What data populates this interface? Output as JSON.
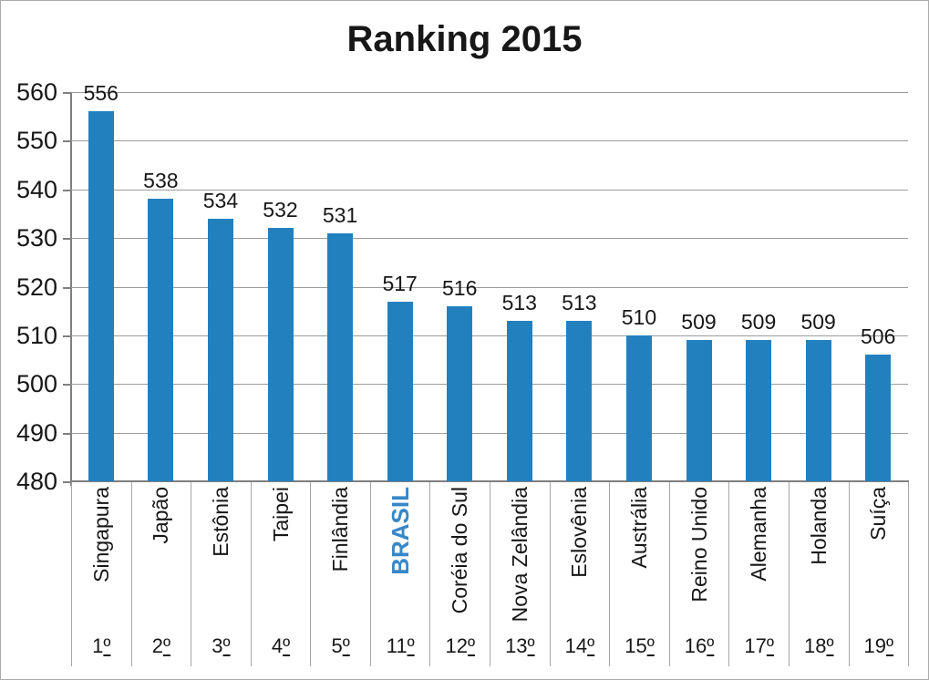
{
  "colors": {
    "bar": "#2380bf",
    "highlight_label": "#3788c9",
    "gridline": "#9c9c9c",
    "axis": "#7f7f7f",
    "separator": "#a6a6a6",
    "text": "#171717"
  },
  "chart_data": {
    "type": "bar",
    "title": "Ranking 2015",
    "xlabel": "",
    "ylabel": "",
    "ylim": [
      480,
      560
    ],
    "yticks": [
      560,
      550,
      540,
      530,
      520,
      510,
      500,
      490,
      480
    ],
    "grid": true,
    "legend": false,
    "bar_color": "#2380bf",
    "points": [
      {
        "label": "Singapura",
        "value": 556,
        "rank": "1º",
        "highlight": false
      },
      {
        "label": "Japão",
        "value": 538,
        "rank": "2º",
        "highlight": false
      },
      {
        "label": "Estônia",
        "value": 534,
        "rank": "3º",
        "highlight": false
      },
      {
        "label": "Taipei",
        "value": 532,
        "rank": "4º",
        "highlight": false
      },
      {
        "label": "Finlândia",
        "value": 531,
        "rank": "5º",
        "highlight": false
      },
      {
        "label": "BRASIL",
        "value": 517,
        "rank": "11º",
        "highlight": true
      },
      {
        "label": "Coréia do Sul",
        "value": 516,
        "rank": "12º",
        "highlight": false
      },
      {
        "label": "Nova Zelândia",
        "value": 513,
        "rank": "13º",
        "highlight": false
      },
      {
        "label": "Eslovênia",
        "value": 513,
        "rank": "14º",
        "highlight": false
      },
      {
        "label": "Austrália",
        "value": 510,
        "rank": "15º",
        "highlight": false
      },
      {
        "label": "Reino Unido",
        "value": 509,
        "rank": "16º",
        "highlight": false
      },
      {
        "label": "Alemanha",
        "value": 509,
        "rank": "17º",
        "highlight": false
      },
      {
        "label": "Holanda",
        "value": 509,
        "rank": "18º",
        "highlight": false
      },
      {
        "label": "Suíça",
        "value": 506,
        "rank": "19º",
        "highlight": false
      }
    ]
  }
}
